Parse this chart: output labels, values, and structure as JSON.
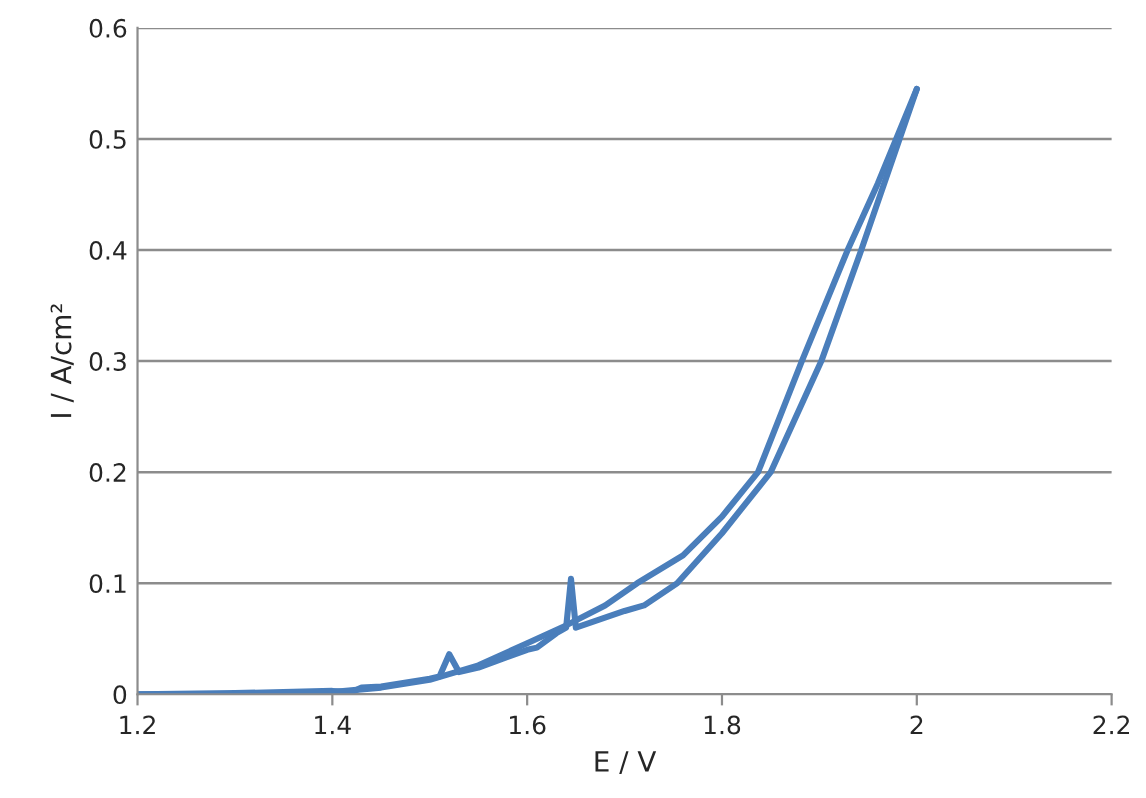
{
  "chart_data": {
    "type": "line",
    "xlabel": "E / V",
    "ylabel": "I / A/cm²",
    "series": [
      {
        "color": "#4a7ebb",
        "x": [
          1.2,
          1.3,
          1.4,
          1.42,
          1.43,
          1.45,
          1.5,
          1.51,
          1.52,
          1.53,
          1.55,
          1.6,
          1.61,
          1.63,
          1.64,
          1.645,
          1.65,
          1.7,
          1.72,
          1.754,
          1.8,
          1.85,
          1.902,
          1.943,
          2.0
        ],
        "values": [
          0,
          0.001,
          0.003,
          0.002,
          0.006,
          0.007,
          0.014,
          0.016,
          0.036,
          0.02,
          0.024,
          0.04,
          0.042,
          0.055,
          0.06,
          0.104,
          0.06,
          0.075,
          0.08,
          0.1,
          0.145,
          0.2,
          0.3,
          0.4,
          0.545
        ]
      },
      {
        "color": "#4a7ebb",
        "x": [
          2.0,
          1.96,
          1.929,
          1.882,
          1.837,
          1.8,
          1.76,
          1.713,
          1.68,
          1.64,
          1.6,
          1.55,
          1.5,
          1.45,
          1.4,
          1.3,
          1.2
        ],
        "values": [
          0.545,
          0.46,
          0.4,
          0.3,
          0.2,
          0.16,
          0.125,
          0.1,
          0.08,
          0.062,
          0.046,
          0.026,
          0.013,
          0.006,
          0.002,
          0,
          0
        ]
      }
    ],
    "xlim": [
      1.2,
      2.2
    ],
    "xticks": [
      1.2,
      1.4,
      1.6,
      1.8,
      2,
      2.2
    ],
    "ylim": [
      0,
      0.6
    ],
    "yticks": [
      0,
      0.1,
      0.2,
      0.3,
      0.4,
      0.5,
      0.6
    ],
    "grid": "y",
    "marker": "none",
    "line_style": "solid",
    "legend": false
  }
}
